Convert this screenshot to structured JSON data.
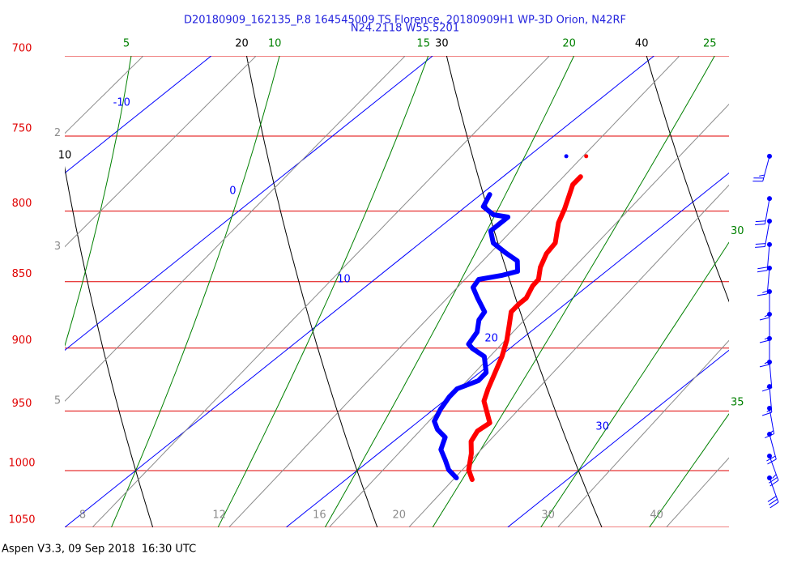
{
  "chart_data": {
    "type": "skewt",
    "title": "D20180909_162135_P.8 164545009 TS Florence, 20180909H1 WP-3D Orion, N42RF",
    "subtitle": "N24.2118 W55.5201",
    "footer": "Aspen V3.3, 09 Sep 2018  16:30 UTC",
    "log_y": true,
    "ylim": [
      700,
      1050
    ],
    "yticks": [
      700,
      750,
      800,
      850,
      900,
      950,
      1000,
      1050
    ],
    "ytick_color": "#e00000",
    "xlim": [
      10,
      40
    ],
    "isotherms": {
      "color": "#0000ff",
      "values": [
        -10,
        0,
        10,
        20,
        30
      ]
    },
    "dry_adiabats": {
      "color": "#000000",
      "values": [
        10,
        20,
        30,
        40
      ]
    },
    "moist_adiabats": {
      "color": "#008000",
      "values": [
        5,
        10,
        15,
        20,
        25,
        30,
        35
      ]
    },
    "mixing_ratios": {
      "color": "#8c8c8c",
      "values": [
        2,
        3,
        5,
        8,
        12,
        16,
        20,
        30,
        40
      ]
    },
    "series": [
      {
        "color": "#ff0000",
        "pressure": [
          776.6,
          782.0,
          790.2,
          798.5,
          808.0,
          822.2,
          829.7,
          839.6,
          848.4,
          853.1,
          862.1,
          866.3,
          872.4,
          881.5,
          893.9,
          906.5,
          919.2,
          932.1,
          941.9,
          959.8,
          966.5,
          975.2,
          985.5,
          999.4,
          1007.7
        ],
        "values": [
          13.5,
          13.6,
          14.1,
          14.6,
          15.1,
          16.1,
          16.3,
          16.8,
          17.4,
          17.5,
          17.9,
          17.9,
          18.0,
          18.6,
          19.4,
          20.1,
          20.7,
          21.3,
          21.8,
          23.3,
          23.2,
          23.5,
          24.2,
          25.0,
          25.7
        ],
        "marker": {
          "pressure": 763.1,
          "value": 12.6
        }
      },
      {
        "color": "#0000ff",
        "pressure": [
          788.6,
          796.9,
          802.4,
          804.1,
          813.7,
          822.2,
          829.1,
          835.0,
          842.5,
          845.5,
          848.4,
          854.3,
          862.1,
          872.4,
          878.5,
          887.7,
          897.0,
          900.2,
          906.5,
          919.2,
          925.6,
          932.1,
          938.6,
          948.5,
          958.4,
          965.2,
          971.8,
          982.1,
          991.1,
          999.4,
          1006.3
        ],
        "values": [
          10.4,
          10.8,
          11.7,
          12.5,
          12.5,
          13.3,
          14.4,
          15.4,
          16.0,
          15.5,
          14.7,
          14.9,
          15.7,
          16.8,
          17.0,
          17.6,
          17.9,
          18.3,
          19.3,
          20.3,
          20.4,
          19.9,
          20.0,
          20.3,
          20.7,
          21.3,
          22.1,
          22.6,
          23.4,
          24.1,
          24.9
        ],
        "marker": {
          "pressure": 763.1,
          "value": 11.7
        }
      }
    ],
    "winds": {
      "color": "#0000ff",
      "pressure": [
        763.1,
        791.4,
        806.9,
        823.3,
        840.2,
        857.3,
        874.2,
        892.6,
        910.9,
        930.2,
        947.8,
        969.2,
        987.6,
        1006.3
      ],
      "direction": [
        195,
        190,
        190,
        185,
        185,
        180,
        180,
        180,
        175,
        175,
        170,
        165,
        160,
        160
      ],
      "speed": [
        25,
        20,
        20,
        20,
        15,
        15,
        15,
        15,
        15,
        15,
        15,
        20,
        25,
        30
      ]
    }
  }
}
